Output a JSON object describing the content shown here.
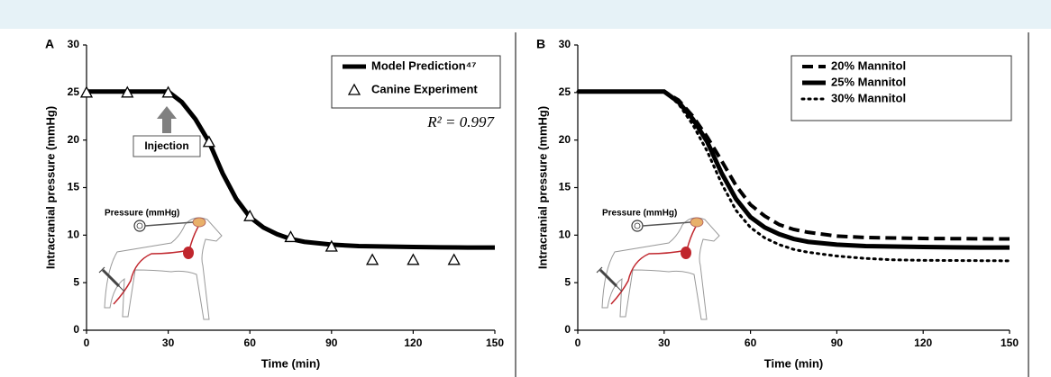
{
  "chart_data": [
    {
      "type": "line",
      "panel_label": "A",
      "xlabel": "Time (min)",
      "ylabel": "Intracranial pressure (mmHg)",
      "xlim": [
        0,
        150
      ],
      "ylim": [
        0,
        30
      ],
      "xticks": [
        0,
        30,
        60,
        90,
        120,
        150
      ],
      "yticks": [
        0,
        5,
        10,
        15,
        20,
        25,
        30
      ],
      "legend": "upper right",
      "series": [
        {
          "name": "Model Prediction⁴⁷",
          "color": "#000000",
          "style": "solid",
          "x": [
            0,
            30,
            35,
            40,
            45,
            50,
            55,
            60,
            65,
            70,
            75,
            80,
            90,
            100,
            110,
            120,
            130,
            140,
            150
          ],
          "values": [
            25.1,
            25.1,
            24,
            22.2,
            19.8,
            16.5,
            13.8,
            11.9,
            10.8,
            10.1,
            9.6,
            9.3,
            9.0,
            8.85,
            8.8,
            8.75,
            8.72,
            8.7,
            8.7
          ]
        },
        {
          "name": "Canine Experiment",
          "color": "#000000",
          "style": "triangle",
          "x": [
            0,
            15,
            30,
            45,
            60,
            75,
            90,
            105,
            120,
            135
          ],
          "values": [
            25,
            25,
            25,
            19.8,
            12,
            9.8,
            8.8,
            7.4,
            7.4,
            7.4
          ]
        }
      ],
      "annotations": [
        "Injection",
        "R² = 0.997"
      ],
      "inset_label": "Pressure (mmHg)"
    },
    {
      "type": "line",
      "panel_label": "B",
      "xlabel": "Time (min)",
      "ylabel": "Intracranial pressure (mmHg)",
      "xlim": [
        0,
        150
      ],
      "ylim": [
        0,
        30
      ],
      "xticks": [
        0,
        30,
        60,
        90,
        120,
        150
      ],
      "yticks": [
        0,
        5,
        10,
        15,
        20,
        25,
        30
      ],
      "legend": "upper right",
      "series": [
        {
          "name": "20% Mannitol",
          "color": "#000000",
          "style": "dashed",
          "x": [
            0,
            30,
            35,
            40,
            45,
            50,
            55,
            60,
            65,
            70,
            75,
            80,
            90,
            100,
            110,
            120,
            150
          ],
          "values": [
            25.1,
            25.1,
            24.2,
            22.5,
            20.3,
            17.8,
            15.2,
            13.2,
            12,
            11.1,
            10.6,
            10.3,
            9.9,
            9.75,
            9.7,
            9.65,
            9.6
          ]
        },
        {
          "name": "25% Mannitol",
          "color": "#000000",
          "style": "solid",
          "x": [
            0,
            30,
            35,
            40,
            45,
            50,
            55,
            60,
            65,
            70,
            75,
            80,
            90,
            100,
            110,
            120,
            130,
            140,
            150
          ],
          "values": [
            25.1,
            25.1,
            24,
            22.2,
            19.8,
            16.5,
            13.8,
            11.9,
            10.8,
            10.1,
            9.6,
            9.3,
            9.0,
            8.85,
            8.8,
            8.75,
            8.72,
            8.7,
            8.7
          ]
        },
        {
          "name": "30% Mannitol",
          "color": "#000000",
          "style": "dotted",
          "x": [
            0,
            30,
            35,
            40,
            45,
            50,
            55,
            60,
            65,
            70,
            75,
            80,
            90,
            100,
            110,
            120,
            150
          ],
          "values": [
            25.1,
            25.1,
            23.8,
            21.6,
            18.8,
            15.4,
            12.6,
            10.8,
            9.7,
            9.0,
            8.5,
            8.2,
            7.8,
            7.55,
            7.4,
            7.35,
            7.3
          ]
        }
      ],
      "inset_label": "Pressure (mmHg)"
    }
  ]
}
